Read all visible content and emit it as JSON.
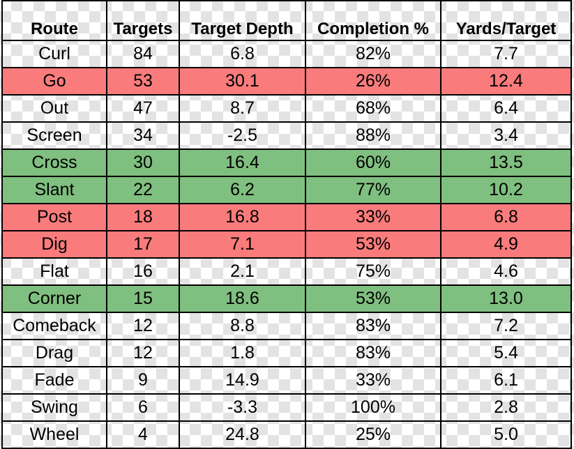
{
  "chart_data": {
    "type": "table",
    "columns": [
      "Route",
      "Targets",
      "Target Depth",
      "Completion %",
      "Yards/Target"
    ],
    "rows": [
      {
        "route": "Curl",
        "targets": "84",
        "depth": "6.8",
        "completion": "82%",
        "ypt": "7.7",
        "highlight": "none"
      },
      {
        "route": "Go",
        "targets": "53",
        "depth": "30.1",
        "completion": "26%",
        "ypt": "12.4",
        "highlight": "red"
      },
      {
        "route": "Out",
        "targets": "47",
        "depth": "8.7",
        "completion": "68%",
        "ypt": "6.4",
        "highlight": "none"
      },
      {
        "route": "Screen",
        "targets": "34",
        "depth": "-2.5",
        "completion": "88%",
        "ypt": "3.4",
        "highlight": "none"
      },
      {
        "route": "Cross",
        "targets": "30",
        "depth": "16.4",
        "completion": "60%",
        "ypt": "13.5",
        "highlight": "green"
      },
      {
        "route": "Slant",
        "targets": "22",
        "depth": "6.2",
        "completion": "77%",
        "ypt": "10.2",
        "highlight": "green"
      },
      {
        "route": "Post",
        "targets": "18",
        "depth": "16.8",
        "completion": "33%",
        "ypt": "6.8",
        "highlight": "red"
      },
      {
        "route": "Dig",
        "targets": "17",
        "depth": "7.1",
        "completion": "53%",
        "ypt": "4.9",
        "highlight": "red"
      },
      {
        "route": "Flat",
        "targets": "16",
        "depth": "2.1",
        "completion": "75%",
        "ypt": "4.6",
        "highlight": "none"
      },
      {
        "route": "Corner",
        "targets": "15",
        "depth": "18.6",
        "completion": "53%",
        "ypt": "13.0",
        "highlight": "green"
      },
      {
        "route": "Comeback",
        "targets": "12",
        "depth": "8.8",
        "completion": "83%",
        "ypt": "7.2",
        "highlight": "none"
      },
      {
        "route": "Drag",
        "targets": "12",
        "depth": "1.8",
        "completion": "83%",
        "ypt": "5.4",
        "highlight": "none"
      },
      {
        "route": "Fade",
        "targets": "9",
        "depth": "14.9",
        "completion": "33%",
        "ypt": "6.1",
        "highlight": "none"
      },
      {
        "route": "Swing",
        "targets": "6",
        "depth": "-3.3",
        "completion": "100%",
        "ypt": "2.8",
        "highlight": "none"
      },
      {
        "route": "Wheel",
        "targets": "4",
        "depth": "24.8",
        "completion": "25%",
        "ypt": "5.0",
        "highlight": "none"
      }
    ],
    "colors": {
      "red": "#f97b7b",
      "green": "#7fbf7f"
    }
  }
}
